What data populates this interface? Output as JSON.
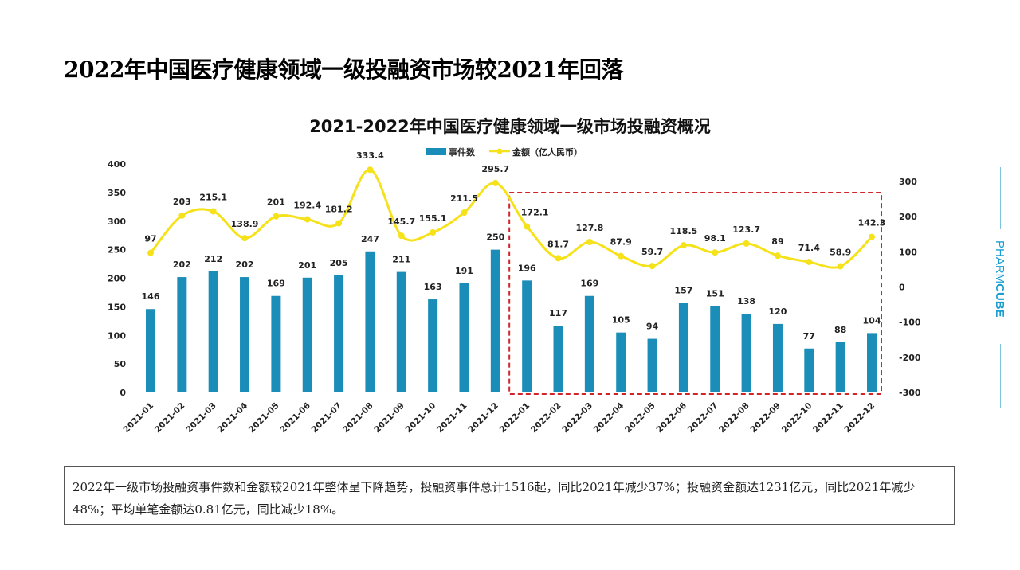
{
  "page_title": "2022年中国医疗健康领域一级投融资市场较2021年回落",
  "brand": {
    "text_light": "PHARM",
    "text_bold": "CUBE",
    "color": "#1a9fd0"
  },
  "note": "2022年一级市场投融资事件数和金额较2021年整体呈下降趋势，投融资事件总计1516起，同比2021年减少37%；投融资金额达1231亿元，同比2021年减少48%；平均单笔金额达0.81亿元，同比减少18%。",
  "chart_data": {
    "type": "bar+line",
    "title": "2021-2022年中国医疗健康领域一级市场投融资概况",
    "legend": {
      "placement": "top"
    },
    "categories": [
      "2021-01",
      "2021-02",
      "2021-03",
      "2021-04",
      "2021-05",
      "2021-06",
      "2021-07",
      "2021-08",
      "2021-09",
      "2021-10",
      "2021-11",
      "2021-12",
      "2022-01",
      "2022-02",
      "2022-03",
      "2022-04",
      "2022-05",
      "2022-06",
      "2022-07",
      "2022-08",
      "2022-09",
      "2022-10",
      "2022-11",
      "2022-12"
    ],
    "series": [
      {
        "name": "事件数",
        "type": "bar",
        "axis": "left",
        "color": "#1a8db8",
        "values": [
          146,
          202,
          212,
          202,
          169,
          201,
          205,
          247,
          211,
          163,
          191,
          250,
          196,
          117,
          169,
          105,
          94,
          157,
          151,
          138,
          120,
          77,
          88,
          104
        ]
      },
      {
        "name": "金额（亿人民币）",
        "type": "line",
        "axis": "right",
        "color": "#f5e21a",
        "values": [
          97,
          203,
          215.1,
          138.9,
          201,
          192.4,
          181.2,
          333.4,
          145.7,
          155.1,
          211.5,
          295.7,
          172.1,
          81.7,
          127.8,
          87.9,
          59.7,
          118.5,
          98.1,
          123.7,
          89,
          71.4,
          58.9,
          142.3
        ]
      }
    ],
    "y_left": {
      "range": [
        0,
        400
      ],
      "ticks": [
        0,
        50,
        100,
        150,
        200,
        250,
        300,
        350,
        400
      ]
    },
    "y_right": {
      "range": [
        -300,
        300
      ],
      "ticks": [
        -300,
        -200,
        -100,
        0,
        100,
        200,
        300
      ]
    },
    "grid": false,
    "highlight": {
      "from": "2022-01",
      "to": "2022-12",
      "color": "#d0262a",
      "style": "dashed"
    }
  }
}
